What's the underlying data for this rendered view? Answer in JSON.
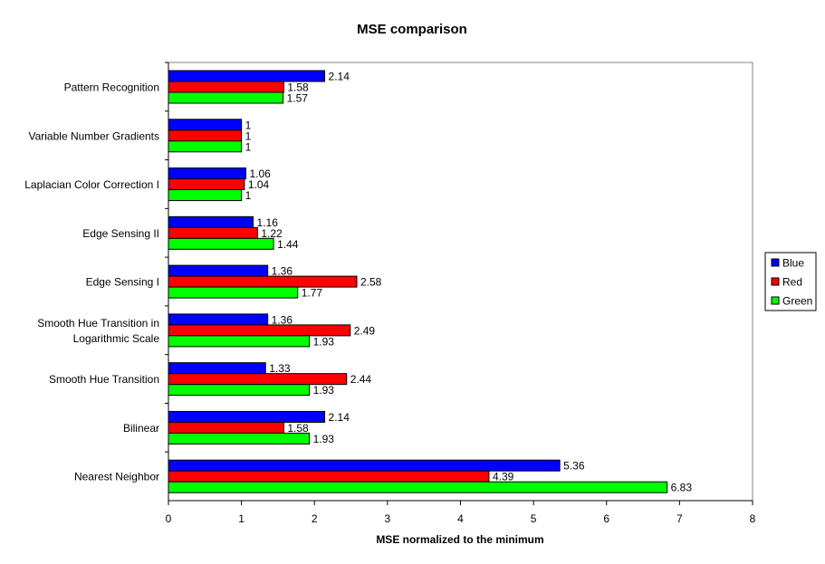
{
  "chart_data": {
    "type": "bar",
    "orientation": "horizontal",
    "title": "MSE comparison",
    "xlabel": "MSE normalized to the minimum",
    "ylabel": "",
    "xlim": [
      0,
      8
    ],
    "xticks": [
      "0",
      "1",
      "2",
      "3",
      "4",
      "5",
      "6",
      "7",
      "8"
    ],
    "grid": false,
    "legend_position": "right",
    "categories": [
      [
        "Pattern Recognition"
      ],
      [
        "Variable Number Gradients"
      ],
      [
        "Laplacian Color Correction I"
      ],
      [
        "Edge Sensing II"
      ],
      [
        "Edge Sensing I"
      ],
      [
        "Smooth Hue Transition in",
        "Logarithmic Scale"
      ],
      [
        "Smooth Hue Transition"
      ],
      [
        "Bilinear"
      ],
      [
        "Nearest Neighbor"
      ]
    ],
    "series": [
      {
        "name": "Blue",
        "color": "#0000ff",
        "values": [
          2.14,
          1,
          1.06,
          1.16,
          1.36,
          1.36,
          1.33,
          2.14,
          5.36
        ],
        "labels": [
          "2.14",
          "1",
          "1.06",
          "1.16",
          "1.36",
          "1.36",
          "1.33",
          "2.14",
          "5.36"
        ]
      },
      {
        "name": "Red",
        "color": "#ff0000",
        "values": [
          1.58,
          1,
          1.04,
          1.22,
          2.58,
          2.49,
          2.44,
          1.58,
          4.39
        ],
        "labels": [
          "1.58",
          "1",
          "1.04",
          "1.22",
          "2.58",
          "2.49",
          "2.44",
          "1.58",
          "4.39"
        ]
      },
      {
        "name": "Green",
        "color": "#00ff00",
        "values": [
          1.57,
          1,
          1,
          1.44,
          1.77,
          1.93,
          1.93,
          1.93,
          6.83
        ],
        "labels": [
          "1.57",
          "1",
          "1",
          "1.44",
          "1.77",
          "1.93",
          "1.93",
          "1.93",
          "6.83"
        ]
      }
    ]
  }
}
